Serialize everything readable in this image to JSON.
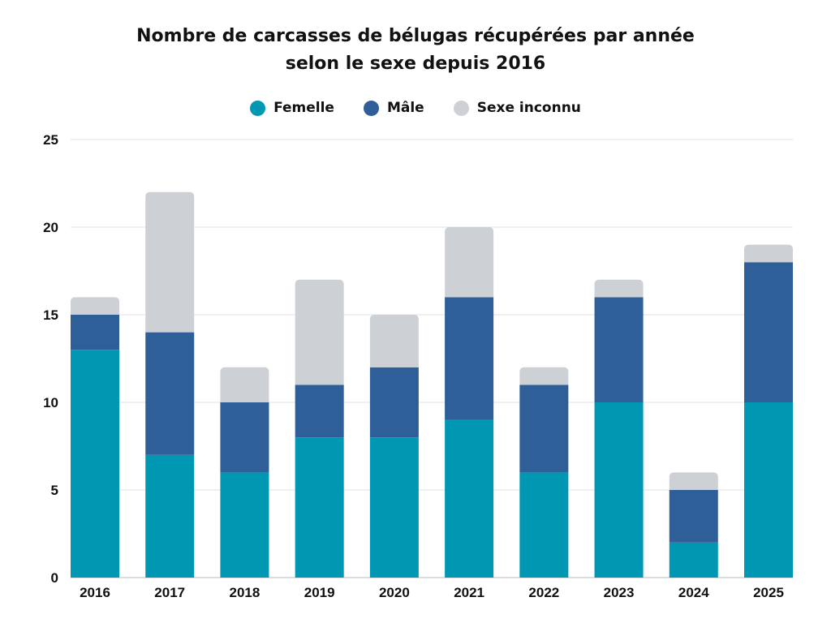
{
  "chart_data": {
    "type": "bar",
    "stacked": true,
    "title": "Nombre de carcasses de bélugas récupérées par année selon le sexe depuis 2016",
    "title_lines": [
      "Nombre de carcasses de bélugas récupérées par année",
      "selon le sexe depuis 2016"
    ],
    "xlabel": "",
    "ylabel": "",
    "categories": [
      "2016",
      "2017",
      "2018",
      "2019",
      "2020",
      "2021",
      "2022",
      "2023",
      "2024",
      "2025"
    ],
    "series": [
      {
        "name": "Femelle",
        "color": "#0097b2",
        "values": [
          13,
          7,
          6,
          8,
          8,
          9,
          6,
          10,
          2,
          10
        ]
      },
      {
        "name": "Mâle",
        "color": "#2e5f98",
        "values": [
          2,
          7,
          4,
          3,
          4,
          7,
          5,
          6,
          3,
          8
        ]
      },
      {
        "name": "Sexe inconnu",
        "color": "#cdd0d5",
        "values": [
          1,
          8,
          2,
          6,
          3,
          4,
          1,
          1,
          1,
          1
        ]
      }
    ],
    "ylim": [
      0,
      25
    ],
    "yticks": [
      0,
      5,
      10,
      15,
      20,
      25
    ],
    "grid": true,
    "legend_position": "top-center"
  }
}
